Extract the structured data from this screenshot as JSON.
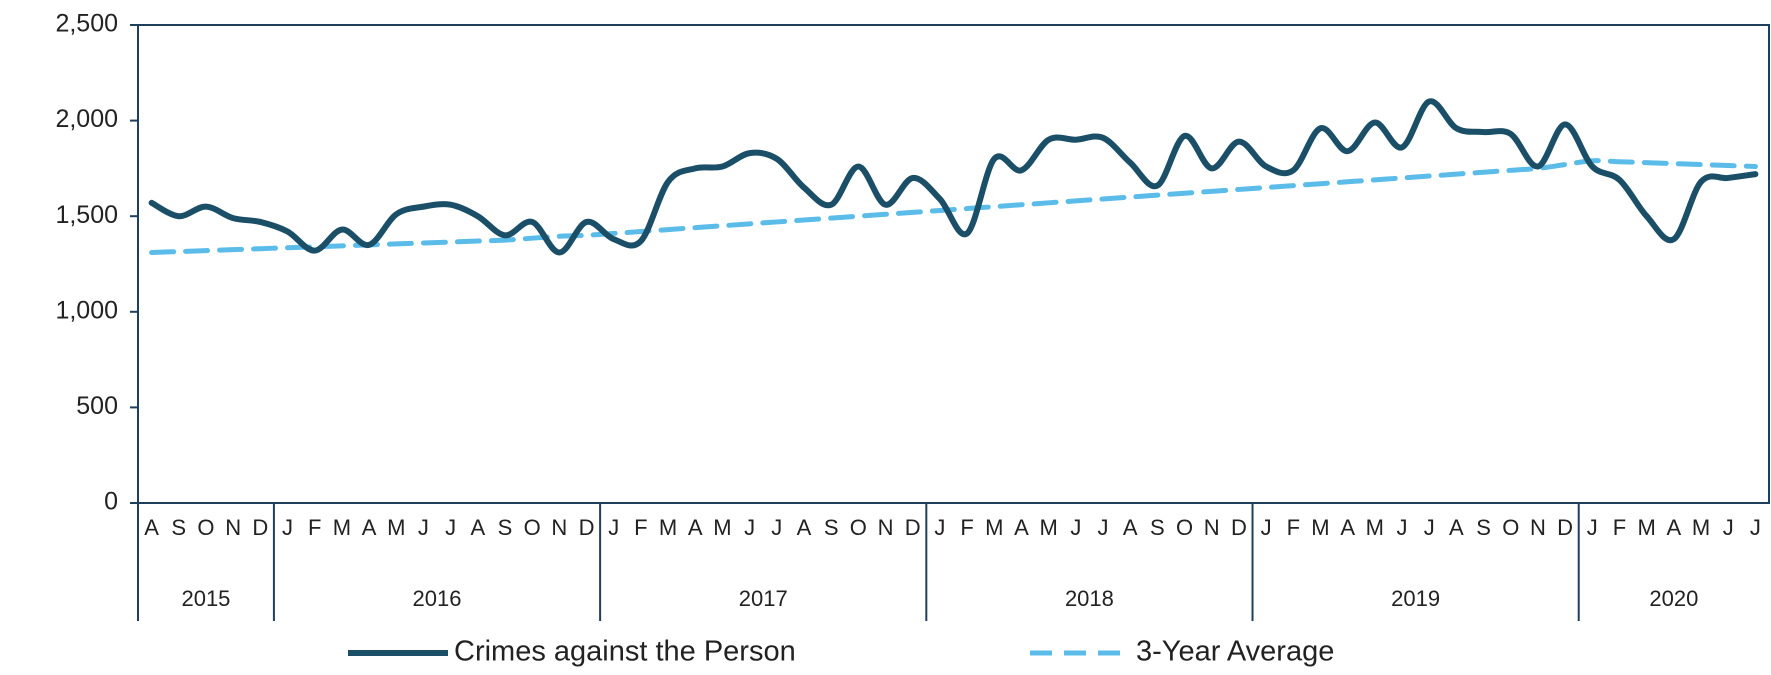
{
  "chart_data": {
    "type": "line",
    "categories": [
      "A",
      "S",
      "O",
      "N",
      "D",
      "J",
      "F",
      "M",
      "A",
      "M",
      "J",
      "J",
      "A",
      "S",
      "O",
      "N",
      "D",
      "J",
      "F",
      "M",
      "A",
      "M",
      "J",
      "J",
      "A",
      "S",
      "O",
      "N",
      "D",
      "J",
      "F",
      "M",
      "A",
      "M",
      "J",
      "J",
      "A",
      "S",
      "O",
      "N",
      "D",
      "J",
      "F",
      "M",
      "A",
      "M",
      "J",
      "J",
      "A",
      "S",
      "O",
      "N",
      "D",
      "J",
      "F",
      "M",
      "A",
      "M",
      "J",
      "J"
    ],
    "year_groups": [
      {
        "label": "2015",
        "count": 5
      },
      {
        "label": "2016",
        "count": 12
      },
      {
        "label": "2017",
        "count": 12
      },
      {
        "label": "2018",
        "count": 12
      },
      {
        "label": "2019",
        "count": 12
      },
      {
        "label": "2020",
        "count": 7
      }
    ],
    "series": [
      {
        "name": "Crimes against the Person",
        "color": "#1b4f68",
        "dashed": false,
        "values": [
          1570,
          1500,
          1550,
          1490,
          1470,
          1420,
          1320,
          1430,
          1350,
          1510,
          1550,
          1560,
          1500,
          1400,
          1470,
          1310,
          1470,
          1380,
          1370,
          1680,
          1750,
          1760,
          1830,
          1800,
          1650,
          1560,
          1760,
          1560,
          1700,
          1590,
          1410,
          1800,
          1740,
          1900,
          1900,
          1910,
          1780,
          1660,
          1920,
          1750,
          1890,
          1760,
          1740,
          1960,
          1840,
          1990,
          1860,
          2100,
          1960,
          1940,
          1930,
          1760,
          1980,
          1760,
          1690,
          1500,
          1380,
          1680,
          1700,
          1720
        ]
      },
      {
        "name": "3-Year Average",
        "color": "#5bbce9",
        "dashed": true,
        "values": [
          1310,
          1315,
          1320,
          1325,
          1330,
          1335,
          1340,
          1345,
          1350,
          1355,
          1360,
          1365,
          1370,
          1375,
          1385,
          1395,
          1400,
          1410,
          1420,
          1430,
          1440,
          1450,
          1460,
          1470,
          1480,
          1490,
          1500,
          1510,
          1520,
          1530,
          1540,
          1550,
          1560,
          1570,
          1580,
          1590,
          1600,
          1610,
          1620,
          1630,
          1640,
          1650,
          1660,
          1670,
          1680,
          1690,
          1700,
          1710,
          1720,
          1730,
          1740,
          1750,
          1770,
          1790,
          1785,
          1780,
          1775,
          1770,
          1765,
          1760
        ]
      }
    ],
    "ylim": [
      0,
      2500
    ],
    "yticks": [
      0,
      500,
      {
        "value": 1000,
        "label": "1,000"
      },
      {
        "value": 1500,
        "label": "1,500"
      },
      {
        "value": 2000,
        "label": "2,000"
      },
      {
        "value": 2500,
        "label": "2,500"
      }
    ],
    "grid": false
  }
}
